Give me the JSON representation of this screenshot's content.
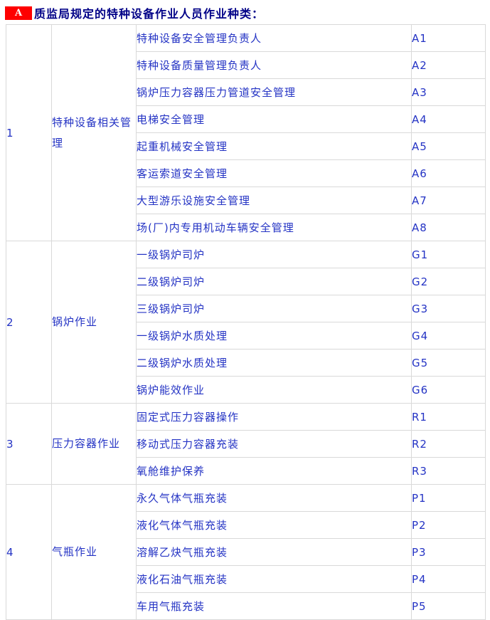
{
  "header": {
    "badge": "A",
    "title": "质监局规定的特种设备作业人员作业种类："
  },
  "colors": {
    "badge_bg": "#fe0000",
    "badge_fg": "#ffffff",
    "title": "#000087",
    "cell_text": "#2433c4",
    "border": "#d9d9d9"
  },
  "table": {
    "groups": [
      {
        "no": "1",
        "category": "特种设备相关管理",
        "rows": [
          {
            "job": "特种设备安全管理负责人",
            "code": "A1"
          },
          {
            "job": "特种设备质量管理负责人",
            "code": "A2"
          },
          {
            "job": "锅炉压力容器压力管道安全管理",
            "code": "A3"
          },
          {
            "job": "电梯安全管理",
            "code": "A4"
          },
          {
            "job": "起重机械安全管理",
            "code": "A5"
          },
          {
            "job": "客运索道安全管理",
            "code": "A6"
          },
          {
            "job": "大型游乐设施安全管理",
            "code": "A7"
          },
          {
            "job": "场(厂)内专用机动车辆安全管理",
            "code": "A8"
          }
        ]
      },
      {
        "no": "2",
        "category": "锅炉作业",
        "rows": [
          {
            "job": "一级锅炉司炉",
            "code": "G1"
          },
          {
            "job": "二级锅炉司炉",
            "code": "G2"
          },
          {
            "job": "三级锅炉司炉",
            "code": "G3"
          },
          {
            "job": "一级锅炉水质处理",
            "code": "G4"
          },
          {
            "job": "二级锅炉水质处理",
            "code": "G5"
          },
          {
            "job": "锅炉能效作业",
            "code": "G6"
          }
        ]
      },
      {
        "no": "3",
        "category": "压力容器作业",
        "rows": [
          {
            "job": "固定式压力容器操作",
            "code": "R1"
          },
          {
            "job": "移动式压力容器充装",
            "code": "R2"
          },
          {
            "job": "氧舱维护保养",
            "code": "R3"
          }
        ]
      },
      {
        "no": "4",
        "category": "气瓶作业",
        "rows": [
          {
            "job": "永久气体气瓶充装",
            "code": "P1"
          },
          {
            "job": "液化气体气瓶充装",
            "code": "P2"
          },
          {
            "job": "溶解乙炔气瓶充装",
            "code": "P3"
          },
          {
            "job": "液化石油气瓶充装",
            "code": "P4"
          },
          {
            "job": "车用气瓶充装",
            "code": "P5"
          }
        ]
      }
    ]
  }
}
